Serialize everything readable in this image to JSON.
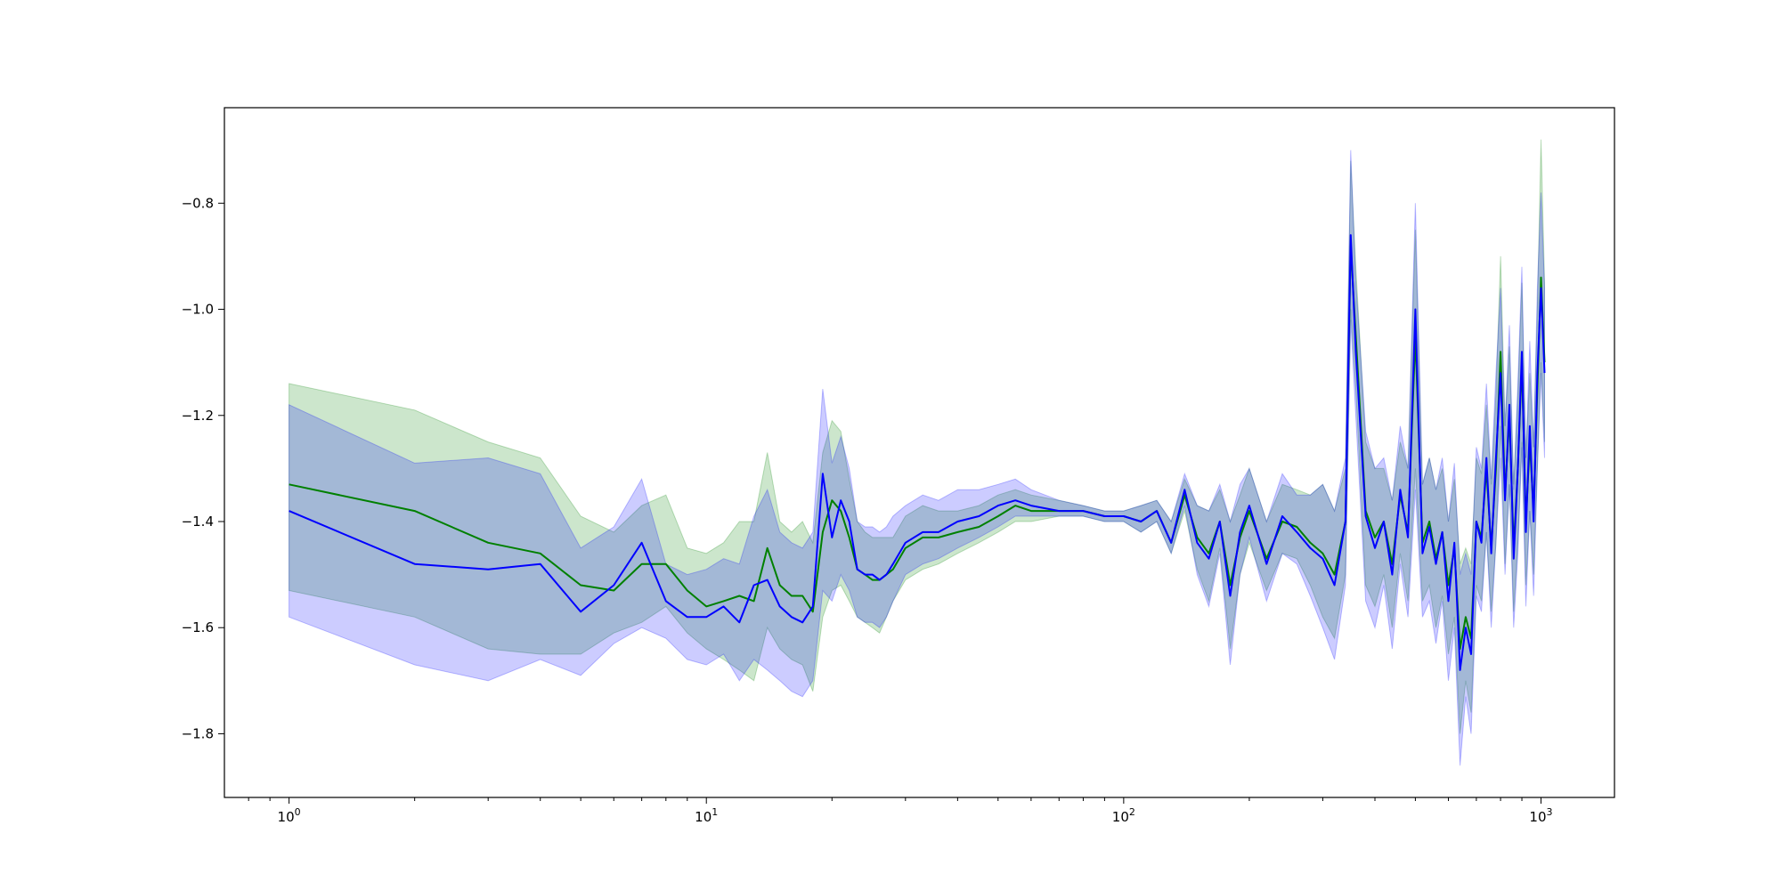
{
  "chart_data": {
    "type": "line",
    "title": "",
    "xlabel": "",
    "ylabel": "",
    "x_scale": "log",
    "xlim": [
      0.7,
      1500
    ],
    "ylim": [
      -1.92,
      -0.62
    ],
    "grid": false,
    "legend": "none",
    "x_ticks": [
      {
        "value": 1,
        "base": "10",
        "exp": "0"
      },
      {
        "value": 10,
        "base": "10",
        "exp": "1"
      },
      {
        "value": 100,
        "base": "10",
        "exp": "2"
      },
      {
        "value": 1000,
        "base": "10",
        "exp": "3"
      }
    ],
    "y_ticks": [
      {
        "value": -0.8,
        "label": "−0.8"
      },
      {
        "value": -1.0,
        "label": "−1.0"
      },
      {
        "value": -1.2,
        "label": "−1.2"
      },
      {
        "value": -1.4,
        "label": "−1.4"
      },
      {
        "value": -1.6,
        "label": "−1.6"
      },
      {
        "value": -1.8,
        "label": "−1.8"
      }
    ],
    "series": [
      {
        "color": "#008000",
        "band_opacity": 0.2,
        "x": [
          1,
          2,
          3,
          4,
          5,
          6,
          7,
          8,
          9,
          10,
          11,
          12,
          13,
          14,
          15,
          16,
          17,
          18,
          19,
          20,
          21,
          22,
          23,
          24,
          25,
          26,
          27,
          28,
          30,
          33,
          36,
          40,
          45,
          50,
          55,
          60,
          70,
          80,
          90,
          100,
          110,
          120,
          130,
          140,
          150,
          160,
          170,
          180,
          190,
          200,
          220,
          240,
          260,
          280,
          300,
          320,
          340,
          350,
          360,
          380,
          400,
          420,
          440,
          460,
          480,
          500,
          520,
          540,
          560,
          580,
          600,
          620,
          640,
          660,
          680,
          700,
          720,
          740,
          760,
          780,
          800,
          820,
          840,
          860,
          880,
          900,
          920,
          940,
          960,
          980,
          1000,
          1020
        ],
        "y": [
          -1.33,
          -1.38,
          -1.44,
          -1.46,
          -1.52,
          -1.53,
          -1.48,
          -1.48,
          -1.53,
          -1.56,
          -1.55,
          -1.54,
          -1.55,
          -1.45,
          -1.52,
          -1.54,
          -1.54,
          -1.57,
          -1.42,
          -1.36,
          -1.38,
          -1.43,
          -1.49,
          -1.5,
          -1.51,
          -1.51,
          -1.5,
          -1.49,
          -1.45,
          -1.43,
          -1.43,
          -1.42,
          -1.41,
          -1.39,
          -1.37,
          -1.38,
          -1.38,
          -1.38,
          -1.39,
          -1.39,
          -1.4,
          -1.38,
          -1.44,
          -1.35,
          -1.43,
          -1.46,
          -1.4,
          -1.52,
          -1.43,
          -1.38,
          -1.47,
          -1.4,
          -1.41,
          -1.44,
          -1.46,
          -1.5,
          -1.4,
          -0.88,
          -1.05,
          -1.38,
          -1.43,
          -1.4,
          -1.48,
          -1.35,
          -1.42,
          -1.05,
          -1.44,
          -1.4,
          -1.47,
          -1.42,
          -1.52,
          -1.45,
          -1.64,
          -1.58,
          -1.62,
          -1.4,
          -1.43,
          -1.3,
          -1.45,
          -1.3,
          -1.08,
          -1.35,
          -1.2,
          -1.45,
          -1.3,
          -1.1,
          -1.4,
          -1.25,
          -1.38,
          -1.15,
          -0.94,
          -1.1
        ],
        "lower": [
          -1.53,
          -1.58,
          -1.64,
          -1.65,
          -1.65,
          -1.61,
          -1.59,
          -1.56,
          -1.61,
          -1.64,
          -1.66,
          -1.68,
          -1.7,
          -1.6,
          -1.64,
          -1.66,
          -1.67,
          -1.72,
          -1.58,
          -1.53,
          -1.52,
          -1.55,
          -1.58,
          -1.59,
          -1.6,
          -1.61,
          -1.58,
          -1.55,
          -1.51,
          -1.49,
          -1.48,
          -1.46,
          -1.44,
          -1.42,
          -1.4,
          -1.4,
          -1.39,
          -1.39,
          -1.4,
          -1.4,
          -1.42,
          -1.4,
          -1.46,
          -1.38,
          -1.49,
          -1.55,
          -1.45,
          -1.64,
          -1.5,
          -1.44,
          -1.53,
          -1.46,
          -1.47,
          -1.52,
          -1.58,
          -1.62,
          -1.5,
          -1.0,
          -1.15,
          -1.52,
          -1.56,
          -1.5,
          -1.6,
          -1.46,
          -1.55,
          -1.3,
          -1.55,
          -1.52,
          -1.6,
          -1.54,
          -1.65,
          -1.58,
          -1.8,
          -1.7,
          -1.76,
          -1.52,
          -1.55,
          -1.42,
          -1.57,
          -1.44,
          -1.22,
          -1.48,
          -1.33,
          -1.57,
          -1.44,
          -1.25,
          -1.52,
          -1.38,
          -1.5,
          -1.3,
          -1.1,
          -1.25
        ],
        "upper": [
          -1.14,
          -1.19,
          -1.25,
          -1.28,
          -1.39,
          -1.42,
          -1.37,
          -1.35,
          -1.45,
          -1.46,
          -1.44,
          -1.4,
          -1.4,
          -1.27,
          -1.4,
          -1.42,
          -1.4,
          -1.44,
          -1.27,
          -1.21,
          -1.23,
          -1.32,
          -1.4,
          -1.42,
          -1.43,
          -1.43,
          -1.43,
          -1.43,
          -1.39,
          -1.37,
          -1.38,
          -1.38,
          -1.37,
          -1.35,
          -1.34,
          -1.35,
          -1.36,
          -1.37,
          -1.38,
          -1.38,
          -1.37,
          -1.36,
          -1.4,
          -1.32,
          -1.37,
          -1.38,
          -1.34,
          -1.4,
          -1.35,
          -1.3,
          -1.4,
          -1.33,
          -1.34,
          -1.35,
          -1.33,
          -1.38,
          -1.3,
          -0.72,
          -0.92,
          -1.25,
          -1.3,
          -1.3,
          -1.36,
          -1.25,
          -1.3,
          -0.85,
          -1.33,
          -1.28,
          -1.34,
          -1.3,
          -1.4,
          -1.32,
          -1.48,
          -1.45,
          -1.48,
          -1.28,
          -1.31,
          -1.18,
          -1.33,
          -1.16,
          -0.9,
          -1.22,
          -1.07,
          -1.33,
          -1.16,
          -0.95,
          -1.28,
          -1.12,
          -1.26,
          -1.0,
          -0.68,
          -0.95
        ]
      },
      {
        "color": "#0000ff",
        "band_opacity": 0.2,
        "x": [
          1,
          2,
          3,
          4,
          5,
          6,
          7,
          8,
          9,
          10,
          11,
          12,
          13,
          14,
          15,
          16,
          17,
          18,
          19,
          20,
          21,
          22,
          23,
          24,
          25,
          26,
          27,
          28,
          30,
          33,
          36,
          40,
          45,
          50,
          55,
          60,
          70,
          80,
          90,
          100,
          110,
          120,
          130,
          140,
          150,
          160,
          170,
          180,
          190,
          200,
          220,
          240,
          260,
          280,
          300,
          320,
          340,
          350,
          360,
          380,
          400,
          420,
          440,
          460,
          480,
          500,
          520,
          540,
          560,
          580,
          600,
          620,
          640,
          660,
          680,
          700,
          720,
          740,
          760,
          780,
          800,
          820,
          840,
          860,
          880,
          900,
          920,
          940,
          960,
          980,
          1000,
          1020
        ],
        "y": [
          -1.38,
          -1.48,
          -1.49,
          -1.48,
          -1.57,
          -1.52,
          -1.44,
          -1.55,
          -1.58,
          -1.58,
          -1.56,
          -1.59,
          -1.52,
          -1.51,
          -1.56,
          -1.58,
          -1.59,
          -1.56,
          -1.31,
          -1.43,
          -1.36,
          -1.4,
          -1.49,
          -1.5,
          -1.5,
          -1.51,
          -1.5,
          -1.48,
          -1.44,
          -1.42,
          -1.42,
          -1.4,
          -1.39,
          -1.37,
          -1.36,
          -1.37,
          -1.38,
          -1.38,
          -1.39,
          -1.39,
          -1.4,
          -1.38,
          -1.44,
          -1.34,
          -1.44,
          -1.47,
          -1.4,
          -1.54,
          -1.42,
          -1.37,
          -1.48,
          -1.39,
          -1.42,
          -1.45,
          -1.47,
          -1.52,
          -1.4,
          -0.86,
          -1.08,
          -1.39,
          -1.45,
          -1.4,
          -1.5,
          -1.34,
          -1.43,
          -1.0,
          -1.46,
          -1.41,
          -1.48,
          -1.42,
          -1.55,
          -1.44,
          -1.68,
          -1.6,
          -1.65,
          -1.4,
          -1.44,
          -1.28,
          -1.46,
          -1.28,
          -1.12,
          -1.36,
          -1.18,
          -1.47,
          -1.3,
          -1.08,
          -1.42,
          -1.22,
          -1.4,
          -1.12,
          -0.96,
          -1.12
        ],
        "lower": [
          -1.58,
          -1.67,
          -1.7,
          -1.66,
          -1.69,
          -1.63,
          -1.6,
          -1.62,
          -1.66,
          -1.67,
          -1.65,
          -1.7,
          -1.66,
          -1.68,
          -1.7,
          -1.72,
          -1.73,
          -1.7,
          -1.53,
          -1.55,
          -1.5,
          -1.53,
          -1.58,
          -1.59,
          -1.59,
          -1.6,
          -1.58,
          -1.55,
          -1.5,
          -1.48,
          -1.47,
          -1.45,
          -1.43,
          -1.41,
          -1.39,
          -1.39,
          -1.39,
          -1.39,
          -1.4,
          -1.4,
          -1.42,
          -1.4,
          -1.46,
          -1.37,
          -1.5,
          -1.56,
          -1.46,
          -1.67,
          -1.5,
          -1.43,
          -1.55,
          -1.46,
          -1.48,
          -1.54,
          -1.6,
          -1.66,
          -1.52,
          -1.02,
          -1.2,
          -1.55,
          -1.6,
          -1.52,
          -1.64,
          -1.48,
          -1.58,
          -1.34,
          -1.58,
          -1.55,
          -1.63,
          -1.55,
          -1.7,
          -1.6,
          -1.86,
          -1.73,
          -1.8,
          -1.54,
          -1.57,
          -1.42,
          -1.6,
          -1.44,
          -1.28,
          -1.5,
          -1.33,
          -1.6,
          -1.46,
          -1.26,
          -1.56,
          -1.38,
          -1.54,
          -1.3,
          -1.12,
          -1.28
        ],
        "upper": [
          -1.18,
          -1.29,
          -1.28,
          -1.31,
          -1.45,
          -1.41,
          -1.32,
          -1.48,
          -1.5,
          -1.49,
          -1.47,
          -1.48,
          -1.39,
          -1.34,
          -1.42,
          -1.44,
          -1.45,
          -1.42,
          -1.15,
          -1.29,
          -1.24,
          -1.3,
          -1.4,
          -1.41,
          -1.41,
          -1.42,
          -1.41,
          -1.39,
          -1.37,
          -1.35,
          -1.36,
          -1.34,
          -1.34,
          -1.33,
          -1.32,
          -1.34,
          -1.36,
          -1.37,
          -1.38,
          -1.38,
          -1.37,
          -1.36,
          -1.4,
          -1.31,
          -1.37,
          -1.38,
          -1.33,
          -1.4,
          -1.33,
          -1.3,
          -1.4,
          -1.31,
          -1.35,
          -1.35,
          -1.33,
          -1.38,
          -1.28,
          -0.7,
          -0.95,
          -1.23,
          -1.3,
          -1.28,
          -1.36,
          -1.22,
          -1.3,
          -0.8,
          -1.33,
          -1.28,
          -1.34,
          -1.28,
          -1.4,
          -1.29,
          -1.5,
          -1.46,
          -1.5,
          -1.26,
          -1.3,
          -1.14,
          -1.32,
          -1.12,
          -0.96,
          -1.22,
          -1.03,
          -1.34,
          -1.14,
          -0.92,
          -1.28,
          -1.06,
          -1.26,
          -0.96,
          -0.78,
          -0.96
        ]
      }
    ]
  }
}
